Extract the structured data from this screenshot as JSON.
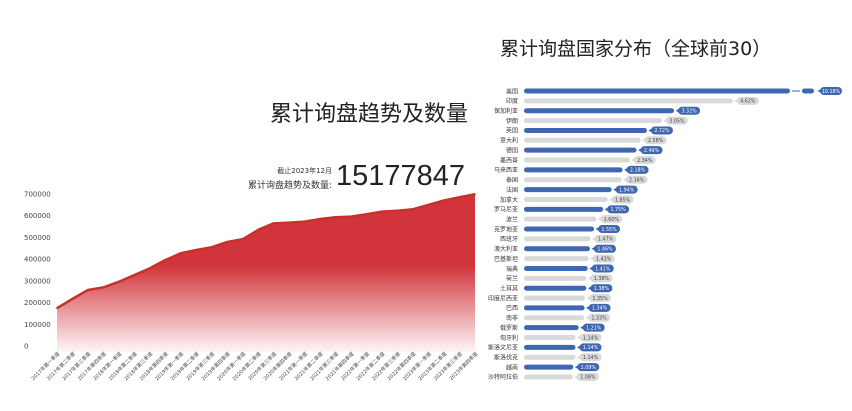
{
  "area_section": {
    "title": "累计询盘趋势及数量",
    "as_of": "截止2023年12月",
    "total_label": "累计询盘趋势及数量:",
    "total_value": "15177847"
  },
  "bar_section": {
    "title": "累计询盘国家分布（全球前30）"
  },
  "colors": {
    "area_line": "#c9302c",
    "area_fill": "#d2343c",
    "bar_highlight": "#3f66b0",
    "bar_muted": "#d9d9d9"
  },
  "chart_data": [
    {
      "type": "area",
      "title": "累计询盘趋势及数量",
      "categories": [
        "2017年第一季度",
        "2017年第二季度",
        "2017年第三季度",
        "2017年第四季度",
        "2018年第一季度",
        "2018年第二季度",
        "2018年第三季度",
        "2018年第四季度",
        "2019年第一季度",
        "2019年第二季度",
        "2019年第三季度",
        "2019年第四季度",
        "2020年第一季度",
        "2020年第二季度",
        "2020年第三季度",
        "2020年第四季度",
        "2021年第一季度",
        "2021年第二季度",
        "2021年第三季度",
        "2021年第四季度",
        "2022年第一季度",
        "2022年第二季度",
        "2022年第三季度",
        "2022年第四季度",
        "2023年第一季度",
        "2023年第二季度",
        "2023年第三季度",
        "2023年第四季度"
      ],
      "values": [
        174000,
        217000,
        258000,
        270000,
        296000,
        327000,
        358000,
        396000,
        427000,
        442000,
        455000,
        479000,
        492000,
        535000,
        565000,
        568000,
        573000,
        585000,
        593000,
        596000,
        607000,
        619000,
        623000,
        630000,
        650000,
        670000,
        685000,
        699000
      ],
      "yticks": [
        0,
        100000,
        200000,
        300000,
        400000,
        500000,
        600000,
        700000
      ],
      "ylim": [
        0,
        700000
      ],
      "grid": false
    },
    {
      "type": "bar",
      "orientation": "horizontal",
      "title": "累计询盘国家分布（全球前30）",
      "axis_break": true,
      "categories": [
        "美国",
        "印度",
        "保加利亚",
        "伊朗",
        "英国",
        "意大利",
        "德国",
        "墨西哥",
        "马来西亚",
        "泰国",
        "法国",
        "加拿大",
        "罗马尼亚",
        "波兰",
        "克罗地亚",
        "西班牙",
        "澳大利亚",
        "巴基斯坦",
        "瑞典",
        "荷兰",
        "土耳其",
        "印度尼西亚",
        "巴西",
        "南非",
        "俄罗斯",
        "匈牙利",
        "斯洛文尼亚",
        "斯洛伐克",
        "越南",
        "沙特阿拉伯"
      ],
      "values": [
        10.18,
        4.62,
        3.32,
        3.05,
        2.72,
        2.58,
        2.49,
        2.34,
        2.18,
        2.16,
        1.94,
        1.85,
        1.75,
        1.6,
        1.55,
        1.47,
        1.46,
        1.43,
        1.41,
        1.38,
        1.38,
        1.35,
        1.34,
        1.33,
        1.21,
        1.14,
        1.14,
        1.14,
        1.09,
        1.08
      ],
      "labels": [
        "10.18%",
        "4.62%",
        "3.32%",
        "3.05%",
        "2.72%",
        "2.58%",
        "2.49%",
        "2.34%",
        "2.18%",
        "2.16%",
        "1.94%",
        "1.85%",
        "1.75%",
        "1.60%",
        "1.55%",
        "1.47%",
        "1.46%",
        "1.43%",
        "1.41%",
        "1.38%",
        "1.38%",
        "1.35%",
        "1.34%",
        "1.33%",
        "1.21%",
        "1.14%",
        "1.14%",
        "1.14%",
        "1.09%",
        "1.08%"
      ]
    }
  ]
}
